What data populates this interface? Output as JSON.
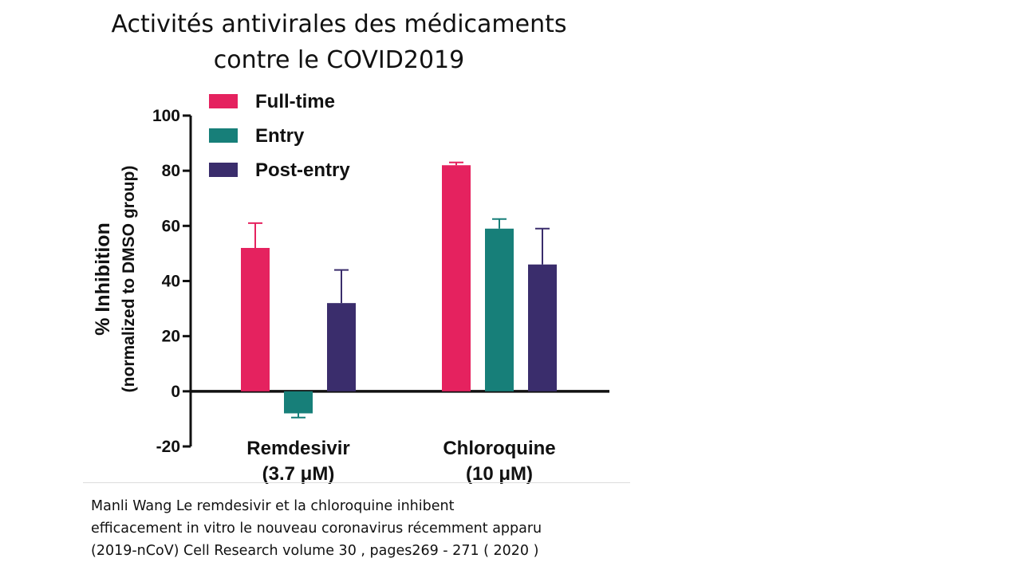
{
  "slide": {
    "title_lines": [
      "Activités antivirales des médicaments",
      "contre le COVID2019"
    ],
    "caption_lines": [
      "Manli Wang Le remdesivir et la chloroquine inhibent",
      "efficacement in vitro le nouveau coronavirus récemment apparu",
      "(2019-nCoV) Cell Research volume 30 , pages269 - 271 ( 2020 )"
    ]
  },
  "chart_data": {
    "type": "bar",
    "ylabel_lines": [
      "% Inhibition",
      "(normalized to DMSO group)"
    ],
    "ylim": [
      -20,
      100
    ],
    "yticks": [
      -20,
      0,
      20,
      40,
      60,
      80,
      100
    ],
    "categories": [
      {
        "lines": [
          "Remdesivir",
          "(3.7 μM)"
        ]
      },
      {
        "lines": [
          "Chloroquine",
          "(10 μM)"
        ]
      }
    ],
    "series": [
      {
        "name": "Full-time",
        "color": "#e5225f",
        "values": [
          52,
          82
        ],
        "errors": [
          9,
          1
        ]
      },
      {
        "name": "Entry",
        "color": "#177f79",
        "values": [
          -8,
          59
        ],
        "errors": [
          1.5,
          3.5
        ]
      },
      {
        "name": "Post-entry",
        "color": "#3a2d6c",
        "values": [
          32,
          46
        ],
        "errors": [
          12,
          13
        ]
      }
    ],
    "legend_position": "top-left",
    "grid": false
  }
}
